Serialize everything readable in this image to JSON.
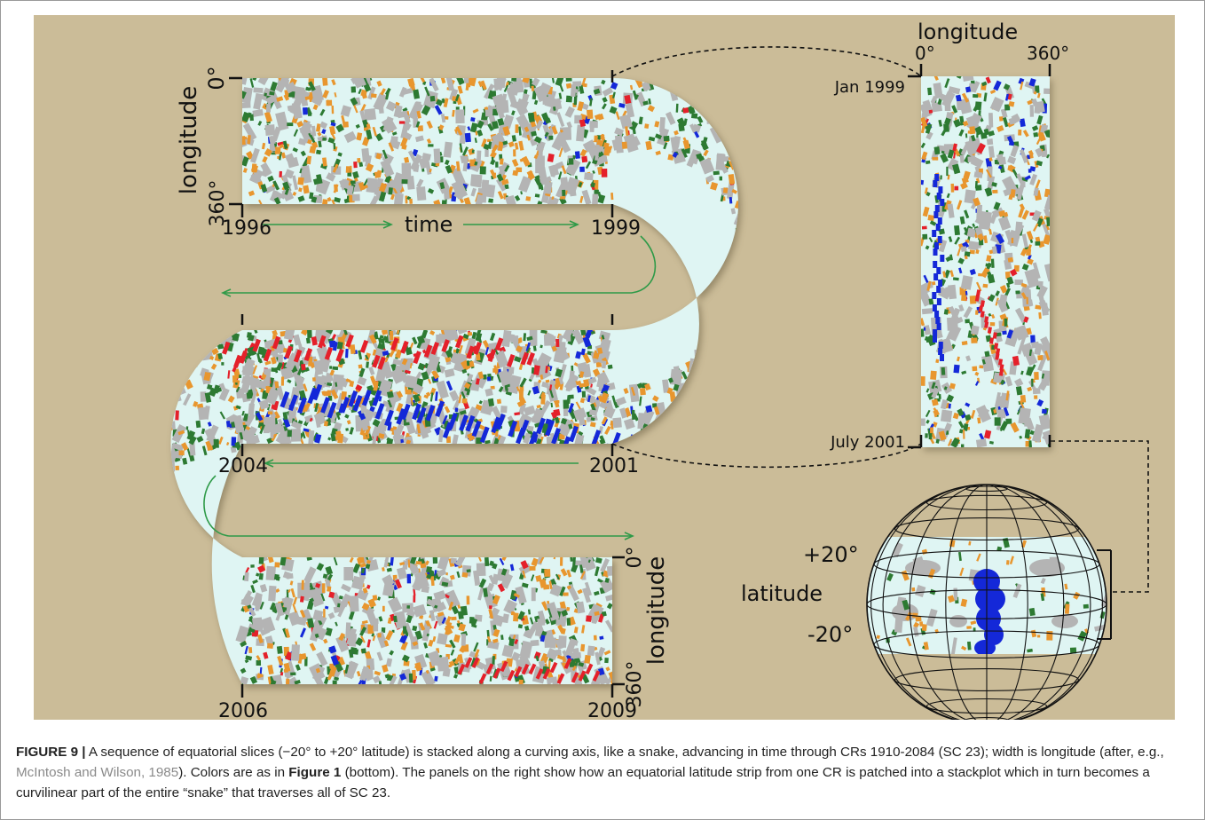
{
  "figure": {
    "labels": {
      "top_lon_zero": "0°",
      "top_lon_360": "360°",
      "top_lon_axis": "longitude",
      "year_1996": "1996",
      "year_1999": "1999",
      "time_label": "time",
      "year_2001": "2001",
      "year_2004": "2004",
      "year_2006": "2006",
      "year_2009": "2009",
      "bottom_lon_zero": "0°",
      "bottom_lon_360": "360°",
      "bottom_lon_axis": "longitude",
      "panel_longitude": "longitude",
      "panel_zero": "0°",
      "panel_360": "360°",
      "panel_jan": "Jan 1999",
      "panel_july": "July 2001",
      "lat_plus": "+20°",
      "lat_minus": "-20°",
      "lat_axis": "latitude"
    },
    "colors": {
      "background": "#cbbc98",
      "strip": "#dff5f3",
      "gray": "#b4b4b4",
      "green": "#2d7a32",
      "orange": "#e8962e",
      "red": "#e4202a",
      "blue": "#1428d8",
      "arrow": "#2e9a48"
    }
  },
  "caption": {
    "label": "FIGURE 9 |",
    "text1": " A sequence of equatorial slices (−20° to +20° latitude) is stacked along a curving axis, like a snake, advancing in time through CRs 1910-2084 (SC 23); width is longitude (after, e.g., ",
    "cite": "McIntosh and Wilson, 1985",
    "text2": "). Colors are as in ",
    "figref": "Figure 1",
    "text3": " (bottom). The panels on the right show how an equatorial latitude strip from one CR is patched into a stackplot which in turn becomes a curvilinear part of the entire “snake” that traverses all of SC 23."
  }
}
